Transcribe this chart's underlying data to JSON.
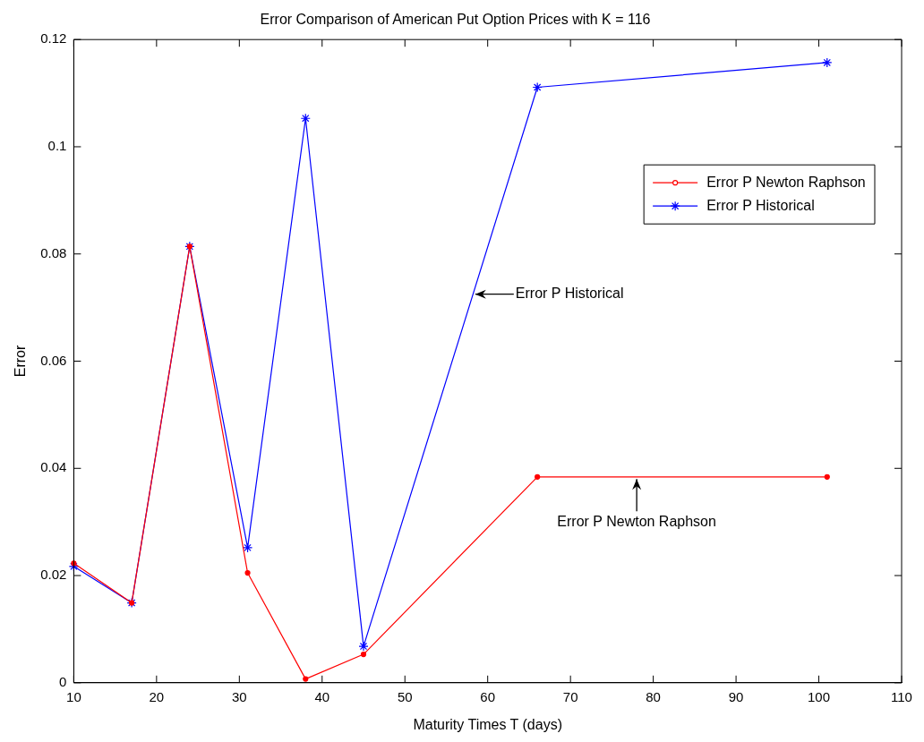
{
  "chart_data": {
    "type": "line",
    "title": "Error Comparison of American Put Option Prices with K = 116",
    "xlabel": "Maturity Times T (days)",
    "ylabel": "Error",
    "x": [
      10,
      17,
      24,
      31,
      38,
      45,
      66,
      101
    ],
    "series": [
      {
        "name": "Error P Newton Raphson",
        "color": "#ff0000",
        "marker": "circle",
        "values": [
          0.0223,
          0.0149,
          0.0814,
          0.0205,
          0.0007,
          0.0053,
          0.0384,
          0.0384
        ]
      },
      {
        "name": "Error P Historical",
        "color": "#0000ff",
        "marker": "cross",
        "values": [
          0.0217,
          0.0149,
          0.0814,
          0.0252,
          0.1053,
          0.0068,
          0.1111,
          0.1157
        ]
      }
    ],
    "xlim": [
      10,
      110
    ],
    "xticks": [
      10,
      20,
      30,
      40,
      50,
      60,
      70,
      80,
      90,
      100,
      110
    ],
    "ylim": [
      0,
      0.12
    ],
    "yticks": [
      0,
      0.02,
      0.04,
      0.06,
      0.08,
      0.1,
      0.12
    ],
    "grid": false,
    "legend": "top right",
    "line_style": "solid",
    "annotations": [
      {
        "text": "Error P Historical",
        "x": 58.5,
        "y": 0.0725
      },
      {
        "text": "Error P Newton Raphson",
        "x": 78,
        "y": 0.038
      }
    ]
  }
}
